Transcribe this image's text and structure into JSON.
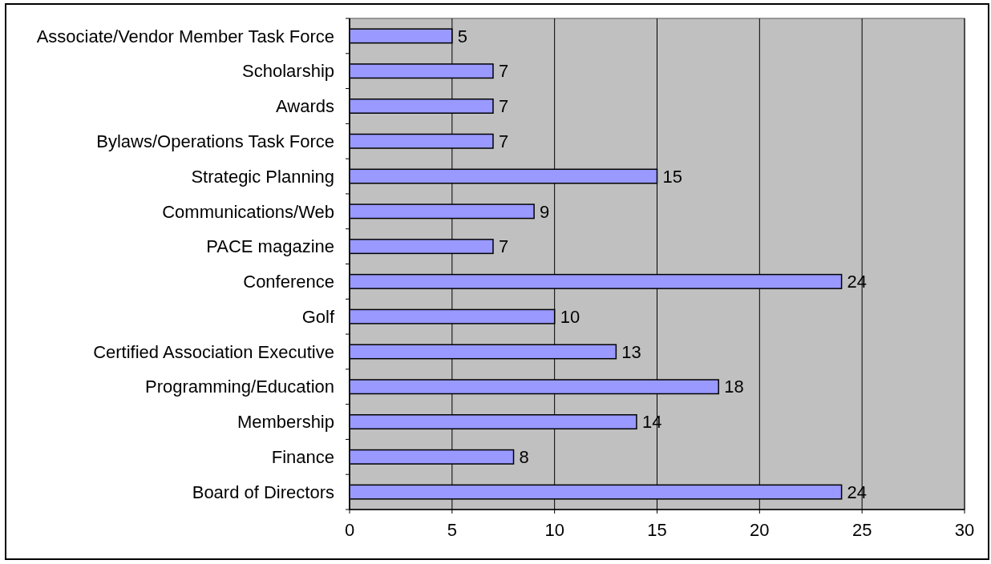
{
  "chart_data": {
    "type": "bar",
    "orientation": "horizontal",
    "categories": [
      "Associate/Vendor Member Task Force",
      "Scholarship",
      "Awards",
      "Bylaws/Operations Task Force",
      "Strategic Planning",
      "Communications/Web",
      "PACE magazine",
      "Conference",
      "Golf",
      "Certified Association Executive",
      "Programming/Education",
      "Membership",
      "Finance",
      "Board of Directors"
    ],
    "values": [
      5,
      7,
      7,
      7,
      15,
      9,
      7,
      24,
      10,
      13,
      18,
      14,
      8,
      24
    ],
    "color": "#9999ff",
    "xlim": [
      0,
      30
    ],
    "xticks": [
      0,
      5,
      10,
      15,
      20,
      25,
      30
    ],
    "grid": "x",
    "data_labels": true
  }
}
